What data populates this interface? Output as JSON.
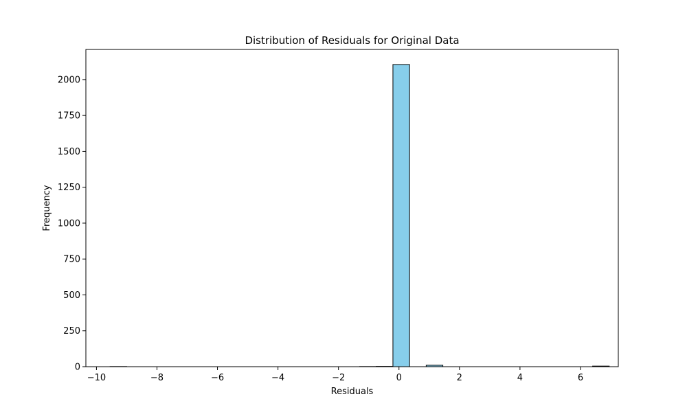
{
  "chart_data": {
    "type": "bar",
    "title": "Distribution of Residuals for Original Data",
    "xlabel": "Residuals",
    "ylabel": "Frequency",
    "xlim": [
      -10.35,
      7.25
    ],
    "ylim": [
      0,
      2210
    ],
    "xticks": [
      -10,
      -8,
      -6,
      -4,
      -2,
      0,
      2,
      4,
      6
    ],
    "xtick_labels": [
      "−10",
      "−8",
      "−6",
      "−4",
      "−2",
      "0",
      "2",
      "4",
      "6"
    ],
    "yticks": [
      0,
      250,
      500,
      750,
      1000,
      1250,
      1500,
      1750,
      2000
    ],
    "ytick_labels": [
      "0",
      "250",
      "500",
      "750",
      "1000",
      "1250",
      "1500",
      "1750",
      "2000"
    ],
    "bar_color": "#87ceeb",
    "edge_color": "#000000",
    "grid": false,
    "bins": [
      {
        "start": -9.55,
        "end": -9.0,
        "value": 1
      },
      {
        "start": -9.0,
        "end": -8.45,
        "value": 0
      },
      {
        "start": -8.45,
        "end": -7.9,
        "value": 0
      },
      {
        "start": -7.9,
        "end": -7.35,
        "value": 0
      },
      {
        "start": -7.35,
        "end": -6.8,
        "value": 0
      },
      {
        "start": -6.8,
        "end": -6.25,
        "value": 0
      },
      {
        "start": -6.25,
        "end": -5.7,
        "value": 0
      },
      {
        "start": -5.7,
        "end": -5.15,
        "value": 0
      },
      {
        "start": -5.15,
        "end": -4.6,
        "value": 0
      },
      {
        "start": -4.6,
        "end": -4.05,
        "value": 0
      },
      {
        "start": -4.05,
        "end": -3.5,
        "value": 0
      },
      {
        "start": -3.5,
        "end": -2.95,
        "value": 0
      },
      {
        "start": -2.95,
        "end": -2.4,
        "value": 0
      },
      {
        "start": -2.4,
        "end": -1.85,
        "value": 0
      },
      {
        "start": -1.85,
        "end": -1.3,
        "value": 0
      },
      {
        "start": -1.3,
        "end": -0.75,
        "value": 1
      },
      {
        "start": -0.75,
        "end": -0.2,
        "value": 2
      },
      {
        "start": -0.2,
        "end": 0.35,
        "value": 2105
      },
      {
        "start": 0.35,
        "end": 0.9,
        "value": 0
      },
      {
        "start": 0.9,
        "end": 1.45,
        "value": 10
      },
      {
        "start": 1.45,
        "end": 2.0,
        "value": 0
      },
      {
        "start": 2.0,
        "end": 2.55,
        "value": 0
      },
      {
        "start": 2.55,
        "end": 3.1,
        "value": 0
      },
      {
        "start": 3.1,
        "end": 3.65,
        "value": 0
      },
      {
        "start": 3.65,
        "end": 4.2,
        "value": 0
      },
      {
        "start": 4.2,
        "end": 4.75,
        "value": 0
      },
      {
        "start": 4.75,
        "end": 5.3,
        "value": 0
      },
      {
        "start": 5.3,
        "end": 5.85,
        "value": 0
      },
      {
        "start": 5.85,
        "end": 6.4,
        "value": 0
      },
      {
        "start": 6.4,
        "end": 6.95,
        "value": 4
      }
    ]
  }
}
